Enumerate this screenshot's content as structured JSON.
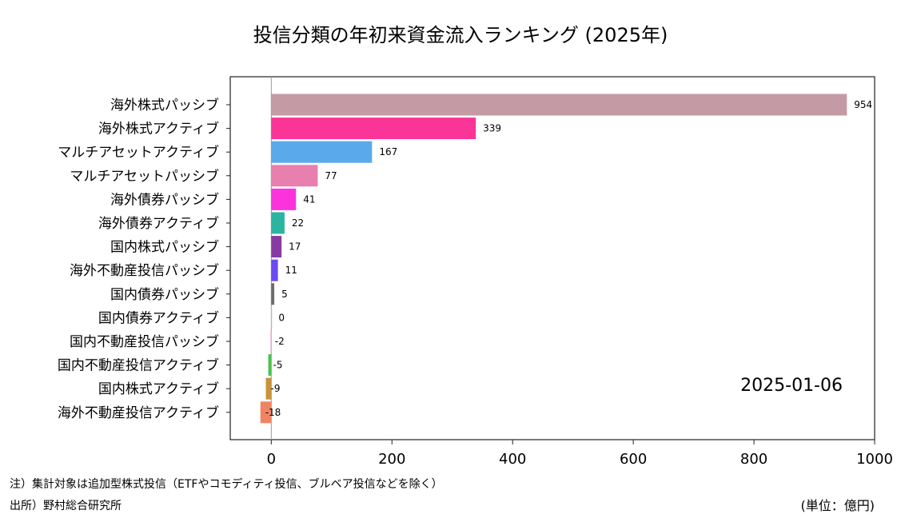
{
  "chart_data": {
    "type": "bar",
    "orientation": "horizontal",
    "title": "投信分類の年初来資金流入ランキング (2025年)",
    "date_label": "2025-01-06",
    "xlim": [
      -68,
      1000
    ],
    "xticks": [
      0,
      200,
      400,
      600,
      800,
      1000
    ],
    "xtick_labels": [
      "0",
      "200",
      "400",
      "600",
      "800",
      "1000"
    ],
    "categories": [
      "海外株式パッシブ",
      "海外株式アクティブ",
      "マルチアセットアクティブ",
      "マルチアセットパッシブ",
      "海外債券パッシブ",
      "海外債券アクティブ",
      "国内株式パッシブ",
      "海外不動産投信パッシブ",
      "国内債券パッシブ",
      "国内債券アクティブ",
      "国内不動産投信パッシブ",
      "国内不動産投信アクティブ",
      "国内株式アクティブ",
      "海外不動産投信アクティブ"
    ],
    "values": [
      954,
      339,
      167,
      77,
      41,
      22,
      17,
      11,
      5,
      0,
      -2,
      -5,
      -9,
      -18
    ],
    "value_labels": [
      "954",
      "339",
      "167",
      "77",
      "41",
      "22",
      "17",
      "11",
      "5",
      "0",
      "-2",
      "-5",
      "-9",
      "-18"
    ],
    "colors": [
      "#c49aa5",
      "#fb3497",
      "#5aa9eb",
      "#e77faf",
      "#fb33dc",
      "#2bb5a1",
      "#883aa3",
      "#6a4af2",
      "#6c6c6c",
      "#c8c8c8",
      "#f0c8e6",
      "#4cc24c",
      "#c8943a",
      "#ef8462"
    ]
  },
  "notes": {
    "source_note": "注）集計対象は追加型株式投信（ETFやコモディティ投信、ブルベア投信などを除く）",
    "source": "出所）野村総合研究所",
    "unit": "(単位：億円)"
  }
}
